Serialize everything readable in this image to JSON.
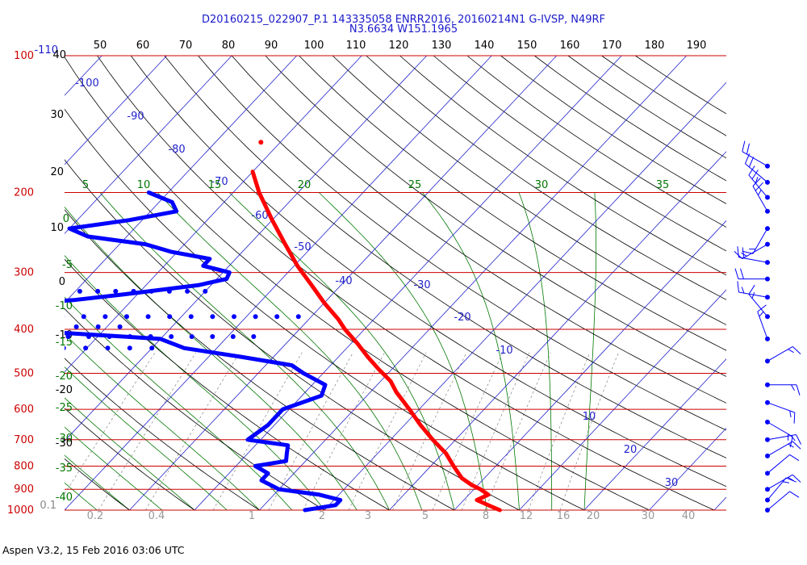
{
  "header": {
    "line1": "D20160215_022907_P.1 143335058 ENRR2016, 20160214N1 G-IVSP, N49RF",
    "line2": "N3.6634 W151.1965"
  },
  "footer": {
    "text": "Aspen V3.2, 15 Feb 2016  03:06 UTC"
  },
  "colors": {
    "isobar": "#cc0000",
    "isotherm": "#2222cc",
    "dry_adiabat": "#000000",
    "moist_adiabat": "#007700",
    "mixing_ratio": "#888888",
    "temperature": "#ff0000",
    "dewpoint": "#0000ff",
    "wind": "#0000ff"
  },
  "chart_data": {
    "type": "skew-t",
    "pressure_axis": {
      "unit": "hPa",
      "levels": [
        100,
        200,
        300,
        400,
        500,
        600,
        700,
        800,
        900,
        1000
      ],
      "labels": [
        "100",
        "200",
        "300",
        "400",
        "500",
        "600",
        "700",
        "800",
        "900",
        "1000"
      ]
    },
    "top_axis_labels": [
      "50",
      "60",
      "70",
      "80",
      "90",
      "100",
      "110",
      "120",
      "130",
      "140",
      "150",
      "160",
      "170",
      "180",
      "190"
    ],
    "left_labels": [
      {
        "text": "-110",
        "color": "blue"
      },
      {
        "text": "40",
        "color": "black"
      },
      {
        "text": "30",
        "color": "black"
      },
      {
        "text": "20",
        "color": "black"
      },
      {
        "text": "10",
        "color": "black"
      },
      {
        "text": "0",
        "color": "green"
      },
      {
        "text": "-5",
        "color": "green"
      },
      {
        "text": "0",
        "color": "black"
      },
      {
        "text": "-10",
        "color": "green"
      },
      {
        "text": "-10",
        "color": "black"
      },
      {
        "text": "-15",
        "color": "green"
      },
      {
        "text": "-20",
        "color": "green"
      },
      {
        "text": "-20",
        "color": "black"
      },
      {
        "text": "-25",
        "color": "green"
      },
      {
        "text": "-30",
        "color": "green"
      },
      {
        "text": "-30",
        "color": "black"
      },
      {
        "text": "-35",
        "color": "green"
      },
      {
        "text": "-40",
        "color": "green"
      },
      {
        "text": "0.1",
        "color": "gray"
      }
    ],
    "isotherm_labels": [
      "-100",
      "-90",
      "-80",
      "-70",
      "-60",
      "-50",
      "-40",
      "-30",
      "-20",
      "-10",
      "10",
      "20",
      "30"
    ],
    "moist_adiabat_labels": [
      "5",
      "10",
      "15",
      "20",
      "25",
      "30",
      "35"
    ],
    "mixing_ratio_labels": [
      "0.2",
      "0.4",
      "1",
      "2",
      "3",
      "5",
      "8",
      "12",
      "16",
      "20",
      "30",
      "40"
    ],
    "temperature_profile": {
      "name": "Temperature",
      "pressure": [
        180,
        200,
        230,
        260,
        290,
        320,
        350,
        380,
        400,
        430,
        460,
        490,
        520,
        550,
        600,
        650,
        700,
        750,
        800,
        850,
        880,
        900,
        925,
        950,
        980,
        1000
      ],
      "temp_c": [
        -60,
        -56,
        -50,
        -44.5,
        -39.5,
        -34.5,
        -30,
        -25.5,
        -23,
        -19,
        -15.5,
        -12,
        -8.5,
        -6,
        -1.5,
        2.5,
        6.5,
        10.5,
        13.5,
        16.5,
        19,
        21,
        23,
        22,
        25,
        27
      ],
      "isolated_point": {
        "pressure": 155,
        "temp_c": -63
      }
    },
    "dewpoint_profile": {
      "name": "Dewpoint",
      "pressure": [
        200,
        210,
        220,
        230,
        240,
        250,
        260,
        270,
        280,
        290,
        300,
        310,
        320,
        335,
        345,
        355,
        370,
        385,
        400,
        420,
        440,
        460,
        480,
        500,
        530,
        560,
        600,
        650,
        700,
        720,
        750,
        780,
        800,
        830,
        860,
        900,
        925,
        950,
        975,
        1000
      ],
      "temp_c": [
        -73,
        -68,
        -66,
        -72,
        -80,
        -76,
        -66,
        -61,
        -54,
        -54,
        -49,
        -48.5,
        -52,
        -62,
        -69,
        -82,
        -86,
        -87,
        -75,
        -50,
        -45,
        -35,
        -26,
        -23,
        -18,
        -17,
        -21,
        -21,
        -22,
        -15,
        -14,
        -13,
        -17,
        -14,
        -14,
        -10,
        -3,
        1,
        1,
        -3
      ]
    },
    "dewpoint_scatter_bands": [
      {
        "pressure": 330,
        "temp_c_range": [
          -130,
          -50
        ],
        "count": 30
      },
      {
        "pressure": 375,
        "temp_c_range": [
          -108,
          -32
        ],
        "count": 24
      },
      {
        "pressure": 395,
        "temp_c_range": [
          -115,
          -58
        ],
        "count": 18
      },
      {
        "pressure": 415,
        "temp_c_range": [
          -128,
          -36
        ],
        "count": 30
      },
      {
        "pressure": 440,
        "temp_c_range": [
          -135,
          -50
        ],
        "count": 26
      }
    ],
    "wind_barbs": {
      "pressure": [
        175,
        190,
        205,
        220,
        240,
        260,
        285,
        310,
        340,
        375,
        420,
        470,
        530,
        580,
        640,
        700,
        760,
        830,
        900,
        950,
        1000
      ],
      "direction_deg": [
        300,
        310,
        320,
        330,
        210,
        240,
        280,
        270,
        280,
        320,
        340,
        60,
        90,
        110,
        120,
        80,
        60,
        50,
        60,
        40,
        50
      ],
      "speed_kt": [
        20,
        20,
        25,
        25,
        15,
        15,
        20,
        20,
        15,
        15,
        15,
        15,
        15,
        15,
        15,
        15,
        15,
        10,
        15,
        15,
        10
      ]
    },
    "grid": true
  }
}
